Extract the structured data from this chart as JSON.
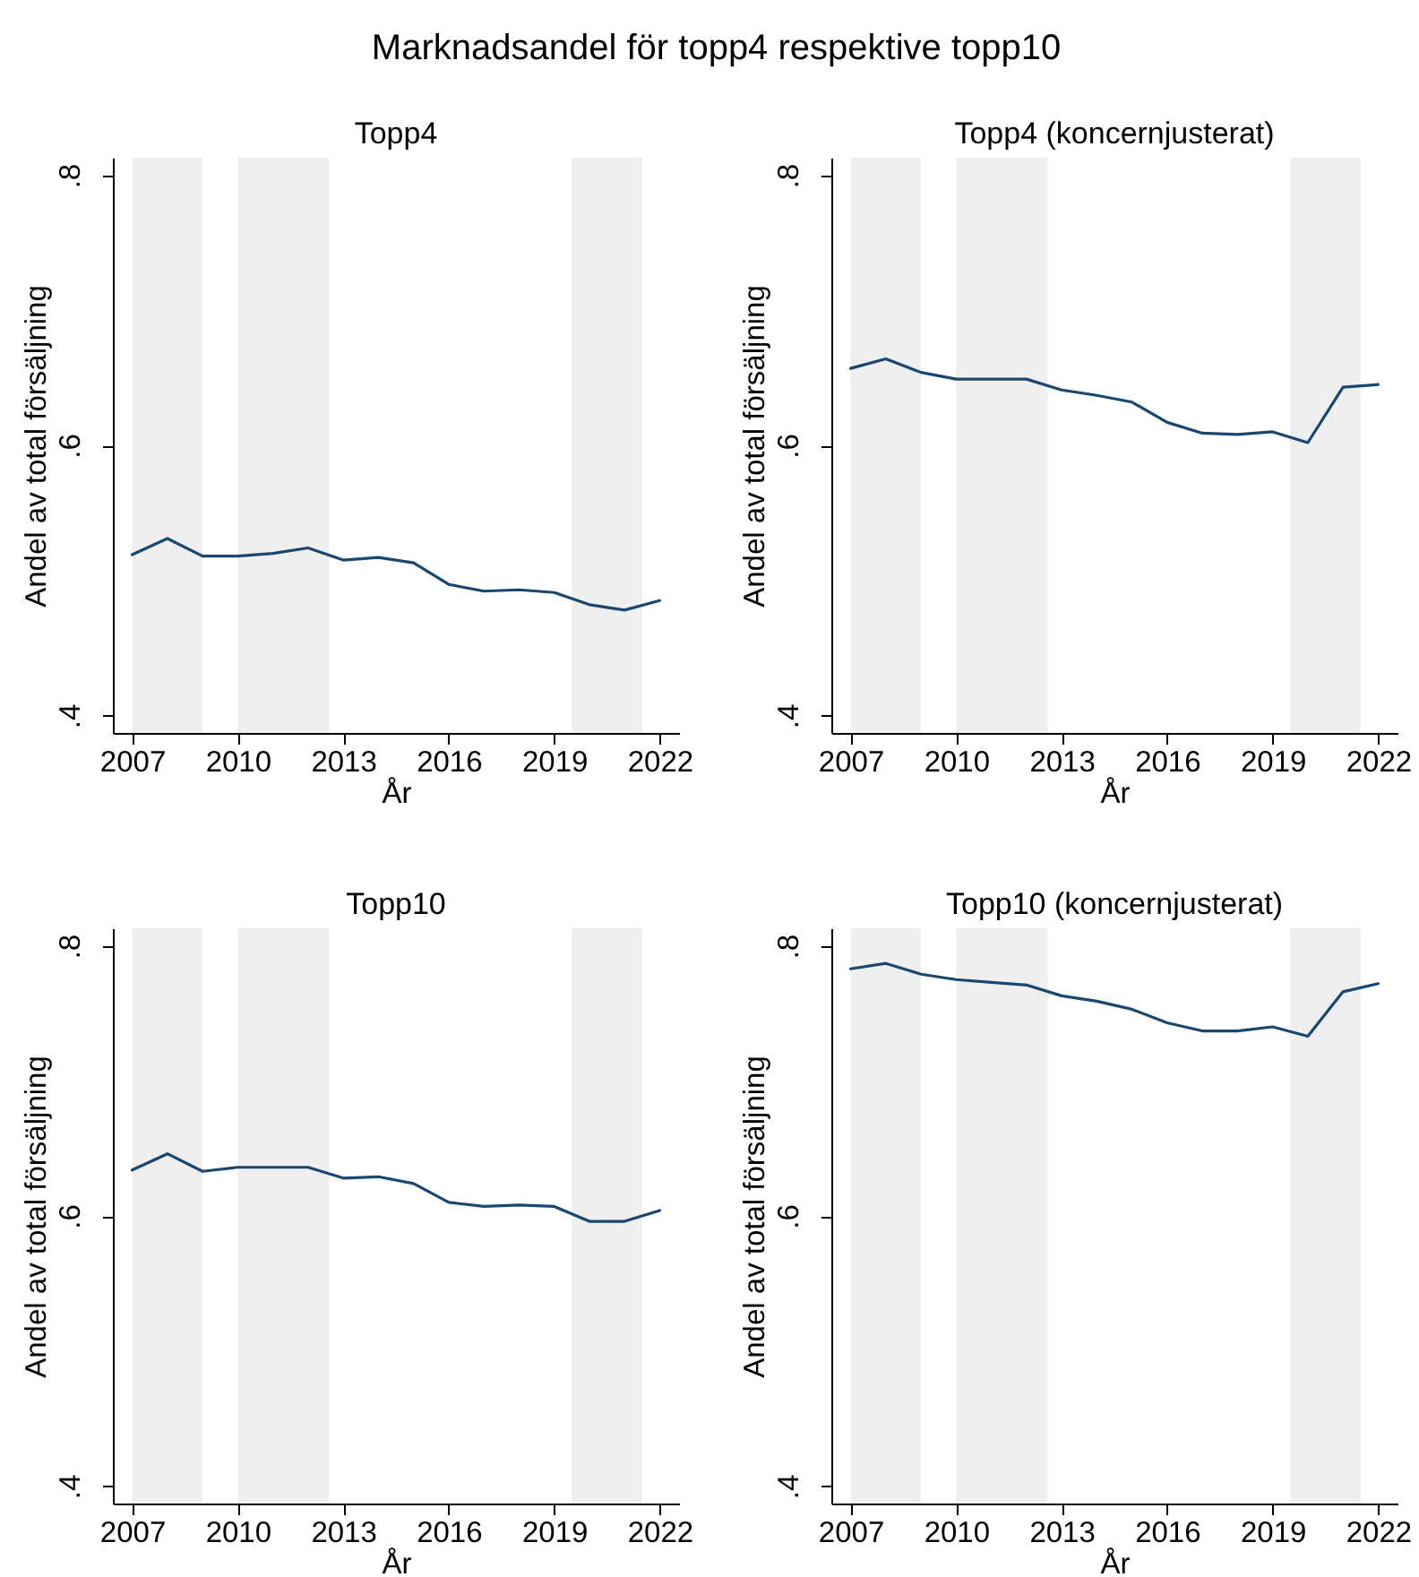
{
  "chart_data": [
    {
      "type": "other",
      "title": "Marknadsandel för topp4 respektive topp10"
    },
    {
      "type": "line",
      "title": "Topp4",
      "xlabel": "År",
      "ylabel": "Andel av total försäljning",
      "x": [
        2007,
        2008,
        2009,
        2010,
        2011,
        2012,
        2013,
        2014,
        2015,
        2016,
        2017,
        2018,
        2019,
        2020,
        2021,
        2022
      ],
      "series": [
        {
          "color": "#1a476f",
          "values": [
            0.519,
            0.531,
            0.518,
            0.518,
            0.52,
            0.524,
            0.515,
            0.517,
            0.513,
            0.497,
            0.492,
            0.493,
            0.491,
            0.482,
            0.478,
            0.485
          ]
        }
      ],
      "xlim": [
        2006.45,
        2022.55
      ],
      "ylim": [
        0.387,
        0.813
      ],
      "xticks": [
        2007,
        2010,
        2013,
        2016,
        2019,
        2022
      ],
      "yticks": [
        {
          "value": 0.4,
          "label": ".4"
        },
        {
          "value": 0.6,
          "label": ".6"
        },
        {
          "value": 0.8,
          "label": ".8"
        }
      ],
      "bands": [
        {
          "axis": "x",
          "from": 2007,
          "to": 2009,
          "color": "#efefef"
        },
        {
          "axis": "x",
          "from": 2010,
          "to": 2012.6,
          "color": "#efefef"
        },
        {
          "axis": "x",
          "from": 2019.5,
          "to": 2021.5,
          "color": "#efefef"
        }
      ]
    },
    {
      "type": "line",
      "title": "Topp4 (koncernjusterat)",
      "xlabel": "År",
      "ylabel": "Andel av total försäljning",
      "x": [
        2007,
        2008,
        2009,
        2010,
        2011,
        2012,
        2013,
        2014,
        2015,
        2016,
        2017,
        2018,
        2019,
        2020,
        2021,
        2022
      ],
      "series": [
        {
          "color": "#1a476f",
          "values": [
            0.657,
            0.664,
            0.654,
            0.649,
            0.649,
            0.649,
            0.641,
            0.637,
            0.632,
            0.617,
            0.609,
            0.608,
            0.61,
            0.602,
            0.643,
            0.645
          ]
        }
      ],
      "xlim": [
        2006.45,
        2022.55
      ],
      "ylim": [
        0.387,
        0.813
      ],
      "xticks": [
        2007,
        2010,
        2013,
        2016,
        2019,
        2022
      ],
      "yticks": [
        {
          "value": 0.4,
          "label": ".4"
        },
        {
          "value": 0.6,
          "label": ".6"
        },
        {
          "value": 0.8,
          "label": ".8"
        }
      ],
      "bands": [
        {
          "axis": "x",
          "from": 2007,
          "to": 2009,
          "color": "#efefef"
        },
        {
          "axis": "x",
          "from": 2010,
          "to": 2012.6,
          "color": "#efefef"
        },
        {
          "axis": "x",
          "from": 2019.5,
          "to": 2021.5,
          "color": "#efefef"
        }
      ]
    },
    {
      "type": "line",
      "title": "Topp10",
      "xlabel": "År",
      "ylabel": "Andel av total försäljning",
      "x": [
        2007,
        2008,
        2009,
        2010,
        2011,
        2012,
        2013,
        2014,
        2015,
        2016,
        2017,
        2018,
        2019,
        2020,
        2021,
        2022
      ],
      "series": [
        {
          "color": "#1a476f",
          "values": [
            0.634,
            0.646,
            0.633,
            0.636,
            0.636,
            0.636,
            0.628,
            0.629,
            0.624,
            0.61,
            0.607,
            0.608,
            0.607,
            0.596,
            0.596,
            0.604
          ]
        }
      ],
      "xlim": [
        2006.45,
        2022.55
      ],
      "ylim": [
        0.387,
        0.813
      ],
      "xticks": [
        2007,
        2010,
        2013,
        2016,
        2019,
        2022
      ],
      "yticks": [
        {
          "value": 0.4,
          "label": ".4"
        },
        {
          "value": 0.6,
          "label": ".6"
        },
        {
          "value": 0.8,
          "label": ".8"
        }
      ],
      "bands": [
        {
          "axis": "x",
          "from": 2007,
          "to": 2009,
          "color": "#efefef"
        },
        {
          "axis": "x",
          "from": 2010,
          "to": 2012.6,
          "color": "#efefef"
        },
        {
          "axis": "x",
          "from": 2019.5,
          "to": 2021.5,
          "color": "#efefef"
        }
      ]
    },
    {
      "type": "line",
      "title": "Topp10 (koncernjusterat)",
      "xlabel": "År",
      "ylabel": "Andel av total försäljning",
      "x": [
        2007,
        2008,
        2009,
        2010,
        2011,
        2012,
        2013,
        2014,
        2015,
        2016,
        2017,
        2018,
        2019,
        2020,
        2021,
        2022
      ],
      "series": [
        {
          "color": "#1a476f",
          "values": [
            0.783,
            0.787,
            0.779,
            0.775,
            0.773,
            0.771,
            0.763,
            0.759,
            0.753,
            0.743,
            0.737,
            0.737,
            0.74,
            0.733,
            0.766,
            0.772
          ]
        }
      ],
      "xlim": [
        2006.45,
        2022.55
      ],
      "ylim": [
        0.387,
        0.813
      ],
      "xticks": [
        2007,
        2010,
        2013,
        2016,
        2019,
        2022
      ],
      "yticks": [
        {
          "value": 0.4,
          "label": ".4"
        },
        {
          "value": 0.6,
          "label": ".6"
        },
        {
          "value": 0.8,
          "label": ".8"
        }
      ],
      "bands": [
        {
          "axis": "x",
          "from": 2007,
          "to": 2009,
          "color": "#efefef"
        },
        {
          "axis": "x",
          "from": 2010,
          "to": 2012.6,
          "color": "#efefef"
        },
        {
          "axis": "x",
          "from": 2019.5,
          "to": 2021.5,
          "color": "#efefef"
        }
      ]
    }
  ]
}
